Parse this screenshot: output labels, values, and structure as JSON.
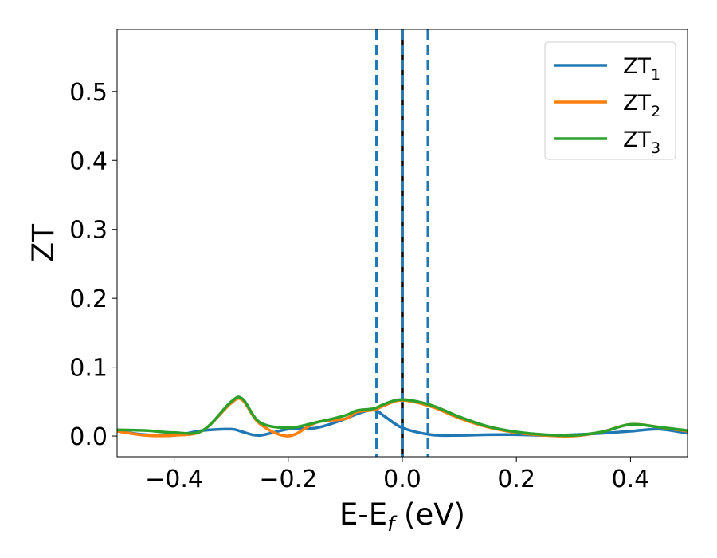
{
  "chart_data": {
    "type": "line",
    "xlabel_main": "E-E",
    "xlabel_sub": "f",
    "xlabel_unit": " (eV)",
    "ylabel": "ZT",
    "xlim": [
      -0.5,
      0.5
    ],
    "ylim": [
      -0.03,
      0.59
    ],
    "xticks": [
      -0.4,
      -0.2,
      0.0,
      0.2,
      0.4
    ],
    "xtick_labels": [
      "−0.4",
      "−0.2",
      "0.0",
      "0.2",
      "0.4"
    ],
    "yticks": [
      0.0,
      0.1,
      0.2,
      0.3,
      0.4,
      0.5
    ],
    "ytick_labels": [
      "0.0",
      "0.1",
      "0.2",
      "0.3",
      "0.4",
      "0.5"
    ],
    "grid": false,
    "legend_position": "top-right",
    "vlines": [
      {
        "x": -0.045,
        "style": "dashed",
        "color": "#1f77b4"
      },
      {
        "x": 0.0,
        "style": "solid",
        "color": "#000000"
      },
      {
        "x": 0.0,
        "style": "dashed",
        "color": "#1f77b4"
      },
      {
        "x": 0.045,
        "style": "dashed",
        "color": "#1f77b4"
      }
    ],
    "x": [
      -0.5,
      -0.45,
      -0.4,
      -0.35,
      -0.3,
      -0.28,
      -0.25,
      -0.2,
      -0.15,
      -0.1,
      -0.08,
      -0.05,
      -0.03,
      0.0,
      0.05,
      0.1,
      0.15,
      0.2,
      0.25,
      0.3,
      0.35,
      0.4,
      0.45,
      0.5
    ],
    "series": [
      {
        "name": "ZT",
        "sub": "1",
        "color": "#1f77b4",
        "values": [
          0.007,
          0.002,
          0.001,
          0.008,
          0.01,
          0.006,
          0.001,
          0.01,
          0.012,
          0.025,
          0.032,
          0.038,
          0.028,
          0.012,
          0.002,
          0.001,
          0.002,
          0.002,
          0.001,
          0.002,
          0.004,
          0.007,
          0.01,
          0.004
        ]
      },
      {
        "name": "ZT",
        "sub": "2",
        "color": "#ff7f0e",
        "values": [
          0.007,
          0.001,
          0.001,
          0.008,
          0.048,
          0.052,
          0.018,
          0.0,
          0.02,
          0.025,
          0.035,
          0.038,
          0.045,
          0.052,
          0.043,
          0.026,
          0.013,
          0.005,
          0.001,
          0.0,
          0.006,
          0.017,
          0.013,
          0.007
        ]
      },
      {
        "name": "ZT",
        "sub": "3",
        "color": "#2ca02c",
        "values": [
          0.009,
          0.008,
          0.005,
          0.008,
          0.05,
          0.054,
          0.02,
          0.012,
          0.02,
          0.03,
          0.037,
          0.04,
          0.047,
          0.053,
          0.045,
          0.028,
          0.014,
          0.006,
          0.002,
          0.001,
          0.006,
          0.017,
          0.013,
          0.008
        ]
      }
    ]
  }
}
